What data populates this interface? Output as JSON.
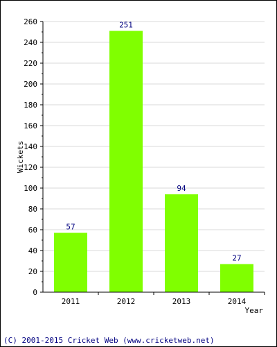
{
  "chart_data": {
    "type": "bar",
    "categories": [
      "2011",
      "2012",
      "2013",
      "2014"
    ],
    "values": [
      57,
      251,
      94,
      27
    ],
    "data_labels": [
      "57",
      "251",
      "94",
      "27"
    ],
    "title": "",
    "xlabel": "Year",
    "ylabel": "Wickets",
    "ylim": [
      0,
      260
    ],
    "yticks": [
      "0",
      "20",
      "40",
      "60",
      "80",
      "100",
      "120",
      "140",
      "160",
      "180",
      "200",
      "220",
      "240",
      "260"
    ],
    "grid": true,
    "legend": "none",
    "bar_color": "#80ff00",
    "grid_color": "#d9d9d9",
    "label_color": "#000080"
  },
  "footer": {
    "text": "(C) 2001-2015 Cricket Web (www.cricketweb.net)"
  }
}
